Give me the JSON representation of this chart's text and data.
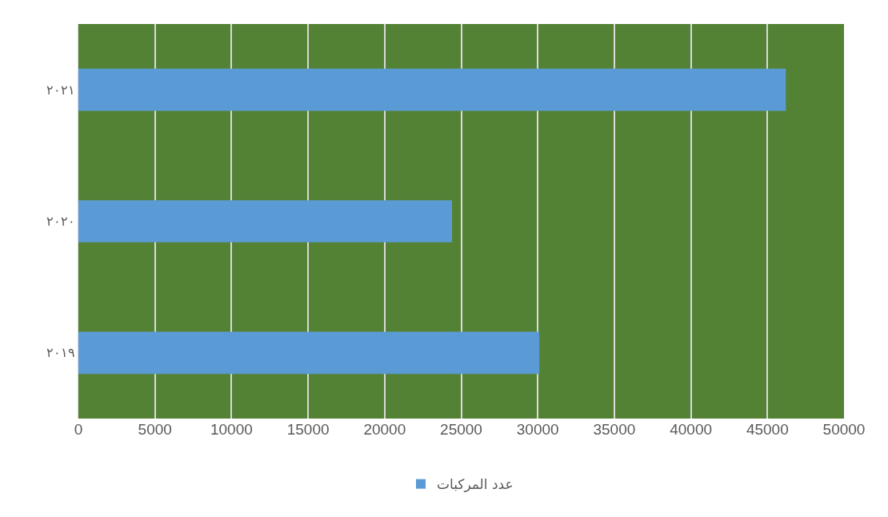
{
  "chart_data": {
    "type": "bar",
    "orientation": "horizontal",
    "categories": [
      "٢٠٢١",
      "٢٠٢٠",
      "٢٠١٩"
    ],
    "series": [
      {
        "name": "عدد المركبات",
        "color": "#5b9bd5",
        "values": [
          46200,
          24400,
          30100
        ]
      }
    ],
    "xlim": [
      0,
      50000
    ],
    "xticks": [
      0,
      5000,
      10000,
      15000,
      20000,
      25000,
      30000,
      35000,
      40000,
      45000,
      50000
    ],
    "grid": "x",
    "legend": "bottom"
  }
}
